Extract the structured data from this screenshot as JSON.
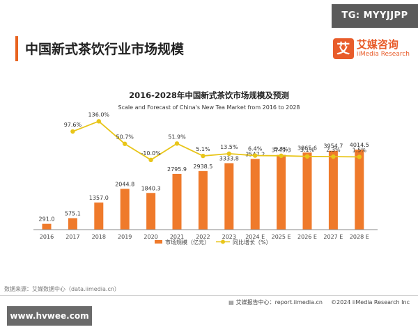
{
  "watermark_top": "TG: MYYJJPP",
  "page_title": "中国新式茶饮行业市场规模",
  "logo": {
    "mark": "艾",
    "name": "艾媒咨询",
    "sub": "iiMedia Research"
  },
  "chart_data": {
    "type": "bar",
    "title": "2016-2028年中国新式茶饮市场规模及预测",
    "subtitle": "Scale and Forecast of China's New Tea Market from 2016 to 2028",
    "categories": [
      "2016",
      "2017",
      "2018",
      "2019",
      "2020",
      "2021",
      "2022",
      "2023",
      "2024 E",
      "2025 E",
      "2026 E",
      "2027 E",
      "2028 E"
    ],
    "series": [
      {
        "name": "市场规模（亿元）",
        "type": "bar",
        "color": "#ef7a2b",
        "values": [
          291.0,
          575.1,
          1357.0,
          2044.8,
          1840.3,
          2795.9,
          2938.5,
          3333.8,
          3547.2,
          3749.3,
          3865.6,
          3954.7,
          4014.5
        ],
        "labels": [
          "291.0",
          "575.1",
          "1357.0",
          "2044.8",
          "1840.3",
          "2795.9",
          "2938.5",
          "3333.8",
          "3547.2",
          "3749.3",
          "3865.6",
          "3954.7",
          "4014.5"
        ]
      },
      {
        "name": "同比增长（%）",
        "type": "line",
        "color": "#e8c519",
        "values": [
          null,
          97.6,
          136.0,
          50.7,
          -10.0,
          51.9,
          5.1,
          13.5,
          6.4,
          5.7,
          3.1,
          2.3,
          1.5
        ],
        "labels": [
          "",
          "97.6%",
          "136.0%",
          "50.7%",
          "-10.0%",
          "51.9%",
          "5.1%",
          "13.5%",
          "6.4%",
          "5.7%",
          "3.1%",
          "2.3%",
          "1.5%"
        ]
      }
    ],
    "legend_position": "bottom",
    "grid": false
  },
  "source_note": "数据来源：艾媒数据中心（data.iimedia.cn）",
  "footer": {
    "report_center": "艾媒报告中心：report.iimedia.cn",
    "copyright": "©2024  iiMedia Research  Inc"
  },
  "site_badge": "www.hvwee.com",
  "colors": {
    "accent": "#e8631f",
    "bar": "#ef7a2b",
    "line": "#e8c519"
  }
}
